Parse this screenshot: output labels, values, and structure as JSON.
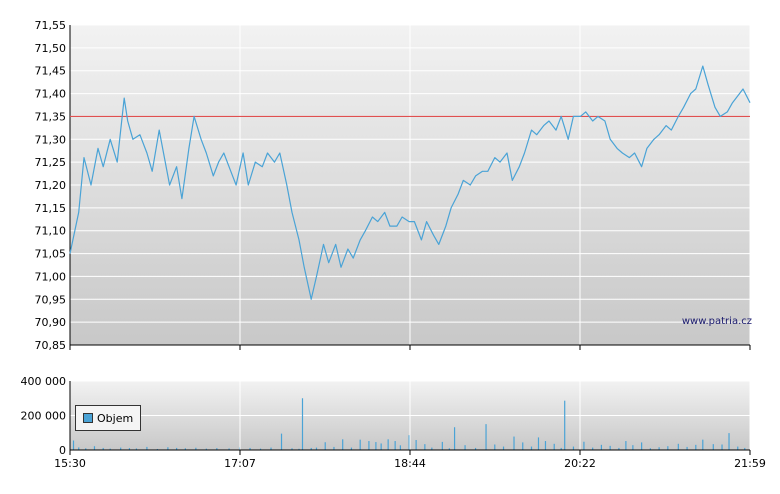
{
  "watermark": "www.patria.cz",
  "colors": {
    "price_line": "#4aa3d6",
    "reference_line": "#e05050",
    "volume_bar": "#4aa3d6",
    "bg_top": "#f2f2f2",
    "bg_bottom": "#c8c8c8",
    "grid": "#ffffff"
  },
  "chart_data": [
    {
      "type": "line",
      "name": "price",
      "ylim": [
        70.85,
        71.55
      ],
      "y_ticks": [
        "71,55",
        "71,50",
        "71,45",
        "71,40",
        "71,35",
        "71,30",
        "71,25",
        "71,20",
        "71,15",
        "71,10",
        "71,05",
        "71,00",
        "70,95",
        "70,90",
        "70,85"
      ],
      "x_ticks": [
        "15:30",
        "17:07",
        "18:44",
        "20:22",
        "21:59"
      ],
      "x_range_minutes": [
        0,
        389
      ],
      "grid": true,
      "reference_line": 71.35,
      "series": [
        {
          "x": [
            0,
            5,
            8,
            12,
            16,
            19,
            23,
            27,
            31,
            33,
            36,
            40,
            44,
            47,
            51,
            54,
            57,
            61,
            64,
            68,
            71,
            75,
            78,
            82,
            85,
            88,
            92,
            95,
            99,
            102,
            106,
            110,
            113,
            117,
            120,
            124,
            127,
            131,
            134,
            138,
            141,
            145,
            148,
            152,
            155,
            159,
            162,
            166,
            169,
            173,
            176,
            180,
            183,
            187,
            190,
            194,
            197,
            201,
            204,
            208,
            211,
            215,
            218,
            222,
            225,
            229,
            232,
            236,
            239,
            243,
            246,
            250,
            253,
            257,
            260,
            264,
            267,
            271,
            274,
            278,
            281,
            285,
            288,
            292,
            295,
            299,
            302,
            306,
            309,
            313,
            316,
            320,
            323,
            327,
            330,
            334,
            337,
            341,
            344,
            348,
            351,
            355,
            358,
            362,
            365,
            369,
            372,
            376,
            379,
            383,
            385,
            389
          ],
          "values": [
            71.05,
            71.14,
            71.26,
            71.2,
            71.28,
            71.24,
            71.3,
            71.25,
            71.39,
            71.34,
            71.3,
            71.31,
            71.27,
            71.23,
            71.32,
            71.26,
            71.2,
            71.24,
            71.17,
            71.28,
            71.35,
            71.3,
            71.27,
            71.22,
            71.25,
            71.27,
            71.23,
            71.2,
            71.27,
            71.2,
            71.25,
            71.24,
            71.27,
            71.25,
            71.27,
            71.2,
            71.14,
            71.08,
            71.02,
            70.95,
            71.0,
            71.07,
            71.03,
            71.07,
            71.02,
            71.06,
            71.04,
            71.08,
            71.1,
            71.13,
            71.12,
            71.14,
            71.11,
            71.11,
            71.13,
            71.12,
            71.12,
            71.08,
            71.12,
            71.09,
            71.07,
            71.11,
            71.15,
            71.18,
            71.21,
            71.2,
            71.22,
            71.23,
            71.23,
            71.26,
            71.25,
            71.27,
            71.21,
            71.24,
            71.27,
            71.32,
            71.31,
            71.33,
            71.34,
            71.32,
            71.35,
            71.3,
            71.35,
            71.35,
            71.36,
            71.34,
            71.35,
            71.34,
            71.3,
            71.28,
            71.27,
            71.26,
            71.27,
            71.24,
            71.28,
            71.3,
            71.31,
            71.33,
            71.32,
            71.35,
            71.37,
            71.4,
            71.41,
            71.46,
            71.42,
            71.37,
            71.35,
            71.36,
            71.38,
            71.4,
            71.41,
            71.38
          ]
        }
      ]
    },
    {
      "type": "bar",
      "name": "Objem",
      "ylim": [
        0,
        400000
      ],
      "y_ticks": [
        "400 000",
        "200 000",
        "0"
      ],
      "x_ticks": [
        "15:30",
        "17:07",
        "18:44",
        "20:22",
        "21:59"
      ],
      "x_range_minutes": [
        0,
        389
      ],
      "legend": "Objem",
      "legend_position": "left",
      "series": [
        {
          "name": "Objem",
          "x": [
            2,
            5,
            9,
            14,
            19,
            23,
            29,
            34,
            38,
            44,
            50,
            56,
            61,
            66,
            72,
            78,
            84,
            91,
            97,
            103,
            109,
            115,
            121,
            127,
            131,
            133,
            138,
            141,
            146,
            151,
            156,
            161,
            166,
            171,
            175,
            178,
            182,
            186,
            189,
            194,
            198,
            203,
            207,
            213,
            217,
            220,
            226,
            232,
            238,
            243,
            248,
            254,
            259,
            264,
            268,
            272,
            277,
            281,
            283,
            288,
            294,
            299,
            304,
            309,
            314,
            318,
            322,
            327,
            332,
            337,
            342,
            348,
            353,
            358,
            362,
            368,
            373,
            377,
            382,
            386
          ],
          "values": [
            55000,
            15000,
            10000,
            22000,
            12000,
            8000,
            14000,
            11000,
            9000,
            18000,
            6000,
            16000,
            12000,
            10000,
            13000,
            8000,
            11000,
            9000,
            15000,
            12000,
            8000,
            14000,
            95000,
            10000,
            7000,
            300000,
            12000,
            14000,
            45000,
            18000,
            62000,
            14000,
            60000,
            52000,
            46000,
            38000,
            62000,
            52000,
            27000,
            86000,
            58000,
            34000,
            14000,
            47000,
            10000,
            132000,
            28000,
            12000,
            150000,
            32000,
            20000,
            78000,
            44000,
            20000,
            73000,
            52000,
            36000,
            12000,
            286000,
            20000,
            48000,
            14000,
            30000,
            24000,
            12000,
            52000,
            28000,
            44000,
            10000,
            16000,
            22000,
            36000,
            18000,
            30000,
            60000,
            34000,
            32000,
            98000,
            20000,
            12000
          ]
        }
      ]
    }
  ]
}
